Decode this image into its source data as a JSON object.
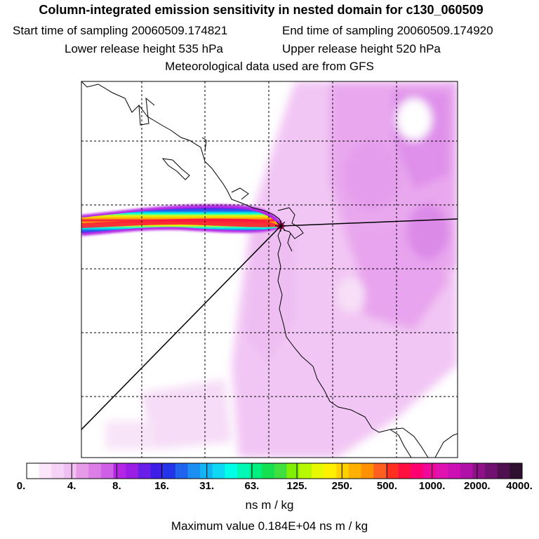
{
  "header": {
    "title": "Column-integrated emission sensitivity in nested domain for c130_060509",
    "start_label": "Start time of sampling 20060509.174821",
    "end_label": "End time of sampling 20060509.174920",
    "lower_label": "Lower release height  535 hPa",
    "upper_label": "Upper release height  520 hPa",
    "met_label": "Meteorological data used are from GFS"
  },
  "colorbar": {
    "tick_labels": [
      "0.",
      "4.",
      "8.",
      "16.",
      "31.",
      "63.",
      "125.",
      "250.",
      "500.",
      "1000.",
      "2000.",
      "4000."
    ],
    "colors": [
      "#ffffff",
      "#fbe6fb",
      "#f7d2f7",
      "#f2bff2",
      "#e79ae7",
      "#dd7ee8",
      "#cf5fe6",
      "#b426e5",
      "#9a1ee4",
      "#6a1ee8",
      "#3c1ee6",
      "#2434e8",
      "#2064ee",
      "#1b8ef2",
      "#12b4f4",
      "#0fd8f4",
      "#00ffe6",
      "#00f8b4",
      "#00f080",
      "#14e050",
      "#40e040",
      "#80f000",
      "#b8f800",
      "#e8f800",
      "#fff000",
      "#ffd000",
      "#ffb000",
      "#ff9000",
      "#ff6020",
      "#ff3020",
      "#ff1040",
      "#ff0070",
      "#f0089a",
      "#e012b0",
      "#cc10b4",
      "#b010a8",
      "#90108a",
      "#701070",
      "#501050",
      "#301030"
    ],
    "units": "ns m / kg",
    "max_value": "Maximum value  0.184E+04 ns m / kg"
  }
}
